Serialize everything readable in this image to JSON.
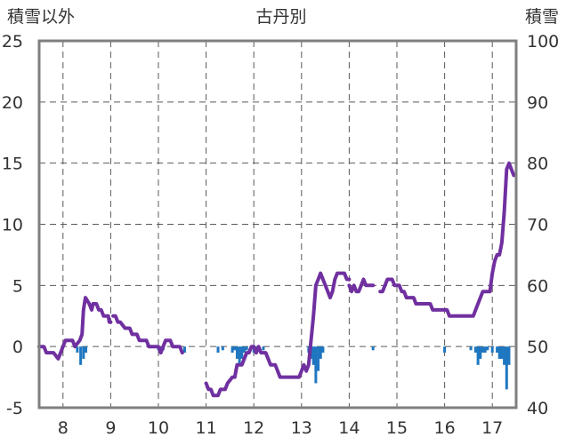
{
  "chart_data": {
    "type": "line",
    "title": "古丹別",
    "left_axis_label": "積雪以外",
    "right_axis_label": "積雪",
    "x_ticks": [
      "8",
      "9",
      "10",
      "11",
      "12",
      "13",
      "14",
      "15",
      "16",
      "17"
    ],
    "x_range": [
      7.5,
      17.5
    ],
    "y_left_range": [
      -5,
      25
    ],
    "y_left_ticks": [
      "-5",
      "0",
      "5",
      "10",
      "15",
      "20",
      "25"
    ],
    "y_right_range": [
      40,
      100
    ],
    "y_right_ticks": [
      "40",
      "50",
      "60",
      "70",
      "80",
      "90",
      "100"
    ],
    "grid": "vertical dashed at hours, horizontal dashed at left ticks",
    "colors": {
      "line": "#7030a0",
      "bars": "#1f77c0",
      "frame": "#7f7f7f",
      "grid": "#595959"
    },
    "series": [
      {
        "type": "line",
        "axis": "left",
        "segments": [
          [
            [
              7.5,
              0.0
            ],
            [
              7.6,
              0.0
            ],
            [
              7.65,
              -0.5
            ],
            [
              7.8,
              -0.5
            ],
            [
              7.9,
              -1.0
            ],
            [
              7.95,
              -0.5
            ],
            [
              8.0,
              0.0
            ],
            [
              8.05,
              0.5
            ],
            [
              8.2,
              0.5
            ],
            [
              8.25,
              0.0
            ],
            [
              8.35,
              0.5
            ],
            [
              8.4,
              1.0
            ],
            [
              8.43,
              3.0
            ],
            [
              8.47,
              4.0
            ],
            [
              8.55,
              3.5
            ],
            [
              8.6,
              3.0
            ],
            [
              8.63,
              3.5
            ],
            [
              8.7,
              3.5
            ],
            [
              8.75,
              3.0
            ],
            [
              8.8,
              3.0
            ],
            [
              8.85,
              2.5
            ],
            [
              8.95,
              2.5
            ],
            [
              8.97,
              2.0
            ],
            [
              9.0,
              2.0
            ]
          ],
          [
            [
              9.05,
              2.5
            ],
            [
              9.1,
              2.5
            ],
            [
              9.15,
              2.0
            ],
            [
              9.2,
              2.0
            ],
            [
              9.3,
              1.5
            ],
            [
              9.4,
              1.5
            ],
            [
              9.45,
              1.0
            ],
            [
              9.55,
              1.0
            ],
            [
              9.6,
              0.5
            ],
            [
              9.75,
              0.5
            ],
            [
              9.8,
              0.0
            ],
            [
              10.0,
              0.0
            ],
            [
              10.05,
              -0.5
            ],
            [
              10.1,
              0.0
            ],
            [
              10.15,
              0.5
            ],
            [
              10.25,
              0.5
            ],
            [
              10.3,
              0.0
            ],
            [
              10.45,
              0.0
            ],
            [
              10.5,
              -0.5
            ]
          ],
          [
            [
              11.0,
              -3.0
            ],
            [
              11.05,
              -3.5
            ],
            [
              11.1,
              -3.5
            ],
            [
              11.15,
              -4.0
            ],
            [
              11.25,
              -4.0
            ],
            [
              11.3,
              -3.5
            ],
            [
              11.4,
              -3.5
            ],
            [
              11.45,
              -3.0
            ],
            [
              11.55,
              -2.5
            ],
            [
              11.6,
              -2.5
            ],
            [
              11.65,
              -1.5
            ],
            [
              11.75,
              -1.5
            ],
            [
              11.8,
              -1.0
            ],
            [
              11.85,
              -0.5
            ],
            [
              11.9,
              -0.5
            ],
            [
              11.95,
              0.0
            ],
            [
              12.0,
              0.0
            ],
            [
              12.05,
              -0.5
            ],
            [
              12.1,
              0.0
            ],
            [
              12.15,
              -0.5
            ],
            [
              12.25,
              -0.5
            ],
            [
              12.3,
              -1.0
            ],
            [
              12.35,
              -1.5
            ],
            [
              12.45,
              -1.5
            ],
            [
              12.5,
              -2.0
            ],
            [
              12.55,
              -2.5
            ],
            [
              12.95,
              -2.5
            ],
            [
              13.0,
              -2.0
            ],
            [
              13.05,
              -1.5
            ],
            [
              13.1,
              -2.0
            ],
            [
              13.15,
              -1.5
            ],
            [
              13.2,
              0.5
            ],
            [
              13.25,
              2.5
            ],
            [
              13.3,
              5.0
            ],
            [
              13.35,
              5.5
            ],
            [
              13.4,
              6.0
            ],
            [
              13.45,
              5.5
            ],
            [
              13.5,
              5.0
            ],
            [
              13.55,
              4.5
            ],
            [
              13.6,
              4.0
            ],
            [
              13.65,
              4.5
            ],
            [
              13.7,
              5.5
            ],
            [
              13.75,
              6.0
            ],
            [
              13.9,
              6.0
            ],
            [
              13.95,
              5.5
            ],
            [
              14.0,
              5.5
            ]
          ],
          [
            [
              14.0,
              5.0
            ],
            [
              14.05,
              4.5
            ],
            [
              14.1,
              5.0
            ],
            [
              14.15,
              4.5
            ],
            [
              14.2,
              4.5
            ],
            [
              14.25,
              5.0
            ],
            [
              14.3,
              5.5
            ],
            [
              14.35,
              5.0
            ],
            [
              14.45,
              5.0
            ],
            [
              14.5,
              5.0
            ]
          ],
          [
            [
              14.65,
              4.5
            ],
            [
              14.7,
              4.5
            ],
            [
              14.75,
              5.0
            ],
            [
              14.8,
              5.5
            ],
            [
              14.9,
              5.5
            ],
            [
              14.95,
              5.0
            ],
            [
              15.05,
              5.0
            ],
            [
              15.1,
              4.5
            ],
            [
              15.15,
              4.5
            ],
            [
              15.2,
              4.0
            ],
            [
              15.35,
              4.0
            ],
            [
              15.4,
              3.5
            ],
            [
              15.7,
              3.5
            ],
            [
              15.75,
              3.0
            ],
            [
              16.05,
              3.0
            ],
            [
              16.1,
              2.5
            ],
            [
              16.6,
              2.5
            ],
            [
              16.65,
              3.0
            ],
            [
              16.7,
              3.5
            ],
            [
              16.75,
              4.0
            ],
            [
              16.8,
              4.5
            ],
            [
              16.95,
              4.5
            ],
            [
              17.0,
              6.0
            ],
            [
              17.05,
              7.0
            ],
            [
              17.1,
              7.5
            ],
            [
              17.15,
              7.5
            ],
            [
              17.2,
              8.5
            ],
            [
              17.25,
              11.0
            ],
            [
              17.3,
              14.5
            ],
            [
              17.35,
              15.0
            ],
            [
              17.4,
              14.5
            ],
            [
              17.45,
              14.0
            ]
          ]
        ]
      },
      {
        "type": "bar",
        "axis": "left",
        "points": [
          [
            8.3,
            -0.5
          ],
          [
            8.37,
            -1.5
          ],
          [
            8.43,
            -1.0
          ],
          [
            8.48,
            -0.5
          ],
          [
            10.0,
            -0.3
          ],
          [
            10.05,
            -0.5
          ],
          [
            10.1,
            -0.3
          ],
          [
            10.55,
            -0.5
          ],
          [
            11.25,
            -0.5
          ],
          [
            11.35,
            -0.3
          ],
          [
            11.55,
            -0.5
          ],
          [
            11.6,
            -0.3
          ],
          [
            11.65,
            -1.0
          ],
          [
            11.7,
            -1.5
          ],
          [
            11.75,
            -1.0
          ],
          [
            11.8,
            -0.5
          ],
          [
            11.85,
            -0.3
          ],
          [
            12.0,
            -0.5
          ],
          [
            12.05,
            -0.3
          ],
          [
            12.2,
            -0.3
          ],
          [
            13.15,
            -0.5
          ],
          [
            13.2,
            -1.0
          ],
          [
            13.25,
            -1.5
          ],
          [
            13.3,
            -3.0
          ],
          [
            13.35,
            -2.0
          ],
          [
            13.4,
            -1.0
          ],
          [
            13.45,
            -0.5
          ],
          [
            14.5,
            -0.3
          ],
          [
            16.0,
            -0.5
          ],
          [
            16.55,
            -0.3
          ],
          [
            16.65,
            -0.5
          ],
          [
            16.7,
            -1.5
          ],
          [
            16.75,
            -1.0
          ],
          [
            16.8,
            -0.5
          ],
          [
            16.85,
            -0.5
          ],
          [
            16.9,
            -0.3
          ],
          [
            17.0,
            -0.5
          ],
          [
            17.1,
            -0.5
          ],
          [
            17.15,
            -1.0
          ],
          [
            17.2,
            -1.0
          ],
          [
            17.25,
            -1.5
          ],
          [
            17.3,
            -3.5
          ],
          [
            17.35,
            -1.5
          ]
        ]
      }
    ]
  }
}
